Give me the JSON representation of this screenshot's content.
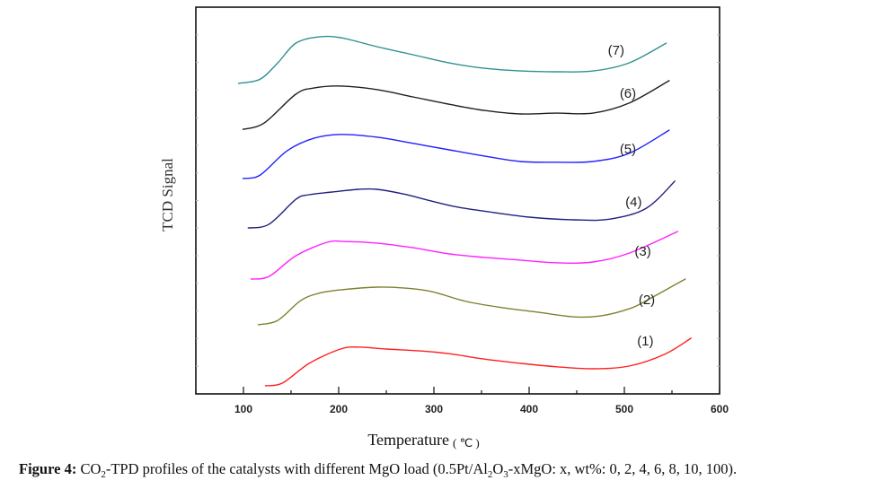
{
  "chart_data": {
    "type": "line",
    "title": "",
    "xlabel": "Temperature",
    "xunit": "( ℃ )",
    "ylabel": "TCD Signal",
    "xlim": [
      50,
      600
    ],
    "ylim": [
      0,
      100
    ],
    "xticks": [
      100,
      200,
      300,
      400,
      500,
      600
    ],
    "grid": false,
    "legend": "inline labels at right end of curves",
    "series": [
      {
        "name": "(1)",
        "color": "#ff2020",
        "x": [
          123,
          141,
          169,
          202,
          221,
          250,
          287,
          316,
          353,
          391,
          429,
          467,
          505,
          542,
          570
        ],
        "y": [
          2.1,
          2.8,
          7.9,
          11.6,
          12.1,
          11.6,
          11.1,
          10.4,
          9.0,
          7.9,
          7.0,
          6.5,
          7.2,
          10.2,
          14.4
        ]
      },
      {
        "name": "(2)",
        "color": "#808030",
        "x": [
          115.6,
          136,
          160,
          179,
          202,
          240,
          268,
          297,
          334,
          372,
          410,
          448,
          476,
          505,
          523,
          564
        ],
        "y": [
          17.9,
          19.0,
          24.1,
          26.0,
          26.9,
          27.6,
          27.4,
          26.5,
          23.9,
          22.3,
          21.1,
          19.9,
          20.2,
          22.0,
          24.1,
          29.7
        ]
      },
      {
        "name": "(3)",
        "color": "#ff20ff",
        "x": [
          108,
          127,
          155,
          188,
          207,
          240,
          278,
          316,
          353,
          391,
          429,
          467,
          505,
          556
        ],
        "y": [
          29.7,
          30.4,
          35.7,
          39.2,
          39.4,
          39.0,
          37.8,
          36.2,
          35.3,
          34.6,
          33.9,
          34.1,
          36.4,
          42.0
        ]
      },
      {
        "name": "(4)",
        "color": "#202080",
        "x": [
          105,
          127,
          155,
          169,
          193,
          221,
          240,
          268,
          297,
          325,
          363,
          400,
          448,
          485,
          523,
          553
        ],
        "y": [
          42.9,
          43.9,
          50.3,
          51.5,
          52.2,
          52.9,
          52.9,
          51.7,
          49.9,
          48.3,
          46.9,
          45.7,
          45.0,
          45.2,
          48.0,
          55.0
        ]
      },
      {
        "name": "(5)",
        "color": "#2020ff",
        "x": [
          99.5,
          117.5,
          146,
          174,
          202,
          240,
          278,
          316,
          353,
          391,
          429,
          467,
          505,
          547
        ],
        "y": [
          55.7,
          56.6,
          62.9,
          66.1,
          67.1,
          66.4,
          64.8,
          63.1,
          61.5,
          60.1,
          59.9,
          60.1,
          62.2,
          68.2
        ]
      },
      {
        "name": "(6)",
        "color": "#202020",
        "x": [
          99.5,
          122,
          155,
          174,
          202,
          240,
          278,
          316,
          353,
          391,
          429,
          467,
          505,
          547
        ],
        "y": [
          68.4,
          70.1,
          77.5,
          79.1,
          79.6,
          78.7,
          76.8,
          74.9,
          73.3,
          72.4,
          72.6,
          72.6,
          75.2,
          81.0
        ]
      },
      {
        "name": "(7)",
        "color": "#309090",
        "x": [
          94.8,
          117.5,
          136,
          155,
          179,
          202,
          240,
          278,
          316,
          353,
          391,
          429,
          467,
          505,
          544
        ],
        "y": [
          80.3,
          81.4,
          85.6,
          90.7,
          92.3,
          92.1,
          89.8,
          87.7,
          85.6,
          84.2,
          83.5,
          83.3,
          83.5,
          85.6,
          90.7
        ]
      }
    ]
  },
  "caption": {
    "figure_label": "Figure 4:",
    "text_1": " CO",
    "sub_1": "2",
    "text_2": "-TPD profiles of the catalysts with different MgO load (0.5Pt/Al",
    "sub_2": "2",
    "text_3": "O",
    "sub_3": "3",
    "text_4": "-xMgO: x, wt%: 0, 2, 4, 6, 8, 10, 100)."
  }
}
